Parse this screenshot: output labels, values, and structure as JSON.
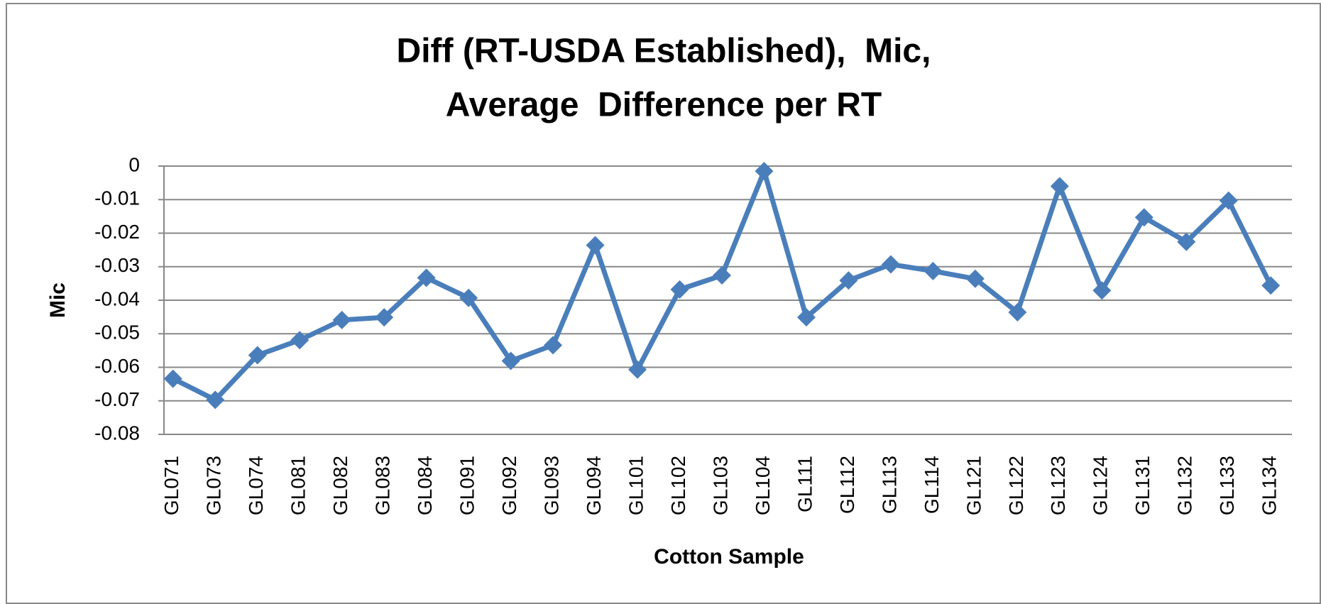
{
  "chart_data": {
    "type": "line",
    "title": [
      "Diff (RT-USDA Established),  Mic,",
      "Average  Difference per RT"
    ],
    "x_label": "Cotton Sample",
    "y_label": "Mic",
    "categories": [
      "GL071",
      "GL073",
      "GL074",
      "GL081",
      "GL082",
      "GL083",
      "GL084",
      "GL091",
      "GL092",
      "GL093",
      "GL094",
      "GL101",
      "GL102",
      "GL103",
      "GL104",
      "GL111",
      "GL112",
      "GL113",
      "GL114",
      "GL121",
      "GL122",
      "GL123",
      "GL124",
      "GL131",
      "GL132",
      "GL133",
      "GL134"
    ],
    "values": [
      -0.0634,
      -0.0697,
      -0.0564,
      -0.0519,
      -0.0459,
      -0.0451,
      -0.0333,
      -0.0393,
      -0.0581,
      -0.0534,
      -0.0236,
      -0.0607,
      -0.0368,
      -0.0326,
      -0.0015,
      -0.0451,
      -0.0341,
      -0.0293,
      -0.0313,
      -0.0336,
      -0.0436,
      -0.006,
      -0.0371,
      -0.0153,
      -0.0226,
      -0.0103,
      -0.0356
    ],
    "color": "#4a7ebb",
    "ylim": [
      -0.08,
      0
    ],
    "yticks": [
      0,
      -0.01,
      -0.02,
      -0.03,
      -0.04,
      -0.05,
      -0.06,
      -0.07,
      -0.08
    ],
    "grid": true
  }
}
